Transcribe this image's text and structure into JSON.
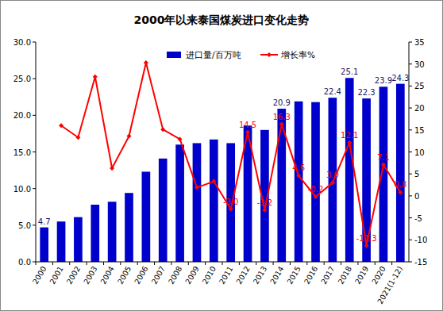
{
  "chart_data": {
    "type": "bar",
    "title": "2000年以来泰国煤炭进口变化走势",
    "categories": [
      "2000",
      "2001",
      "2002",
      "2003",
      "2004",
      "2005",
      "2006",
      "2007",
      "2008",
      "2009",
      "2010",
      "2011",
      "2012",
      "2013",
      "2014",
      "2015",
      "2016",
      "2017",
      "2018",
      "2019",
      "2020",
      "2021(1-12)"
    ],
    "series": [
      {
        "name": "进口量/百万吨",
        "type": "bar",
        "color": "#0000CC",
        "values": [
          4.7,
          5.5,
          6.1,
          7.8,
          8.2,
          9.4,
          12.3,
          14.1,
          16.0,
          16.2,
          16.7,
          16.2,
          18.6,
          18.0,
          20.9,
          21.9,
          21.8,
          22.4,
          25.1,
          22.3,
          23.9,
          24.3
        ],
        "value_labels": [
          "4.7",
          null,
          null,
          null,
          null,
          null,
          null,
          null,
          null,
          null,
          null,
          null,
          null,
          null,
          "20.9",
          null,
          null,
          "22.4",
          "25.1",
          "22.3",
          "23.9",
          "24.3"
        ]
      },
      {
        "name": "增长率%",
        "type": "line",
        "axis": "y2",
        "color": "#FF0000",
        "marker": "diamond",
        "values": [
          null,
          16.0,
          13.3,
          27.1,
          6.3,
          13.6,
          30.3,
          15.1,
          12.9,
          1.9,
          3.3,
          -3.0,
          14.5,
          -3.2,
          16.3,
          4.6,
          -0.2,
          3.0,
          12.1,
          -11.3,
          7.1,
          0.8
        ],
        "value_labels": [
          null,
          null,
          null,
          null,
          null,
          null,
          null,
          null,
          null,
          null,
          null,
          "-3.0",
          "14.5",
          "-3.2",
          "16.3",
          "4.6",
          "-0.2",
          "3.0",
          "12.1",
          "-11.3",
          "7.1",
          "0.8"
        ]
      }
    ],
    "ylim": [
      0,
      30
    ],
    "yticks": [
      {
        "value": 0,
        "label": "0.0"
      },
      {
        "value": 5,
        "label": "5.0"
      },
      {
        "value": 10,
        "label": "10.0"
      },
      {
        "value": 15,
        "label": "15.0"
      },
      {
        "value": 20,
        "label": "20.0"
      },
      {
        "value": 25,
        "label": "25.0"
      },
      {
        "value": 30,
        "label": "30.0"
      }
    ],
    "y2lim": [
      -15,
      35
    ],
    "y2ticks": [
      -15,
      -10,
      -5,
      0,
      5,
      10,
      15,
      20,
      25,
      30,
      35
    ],
    "grid": false,
    "legend": "top",
    "data_labels": true
  }
}
